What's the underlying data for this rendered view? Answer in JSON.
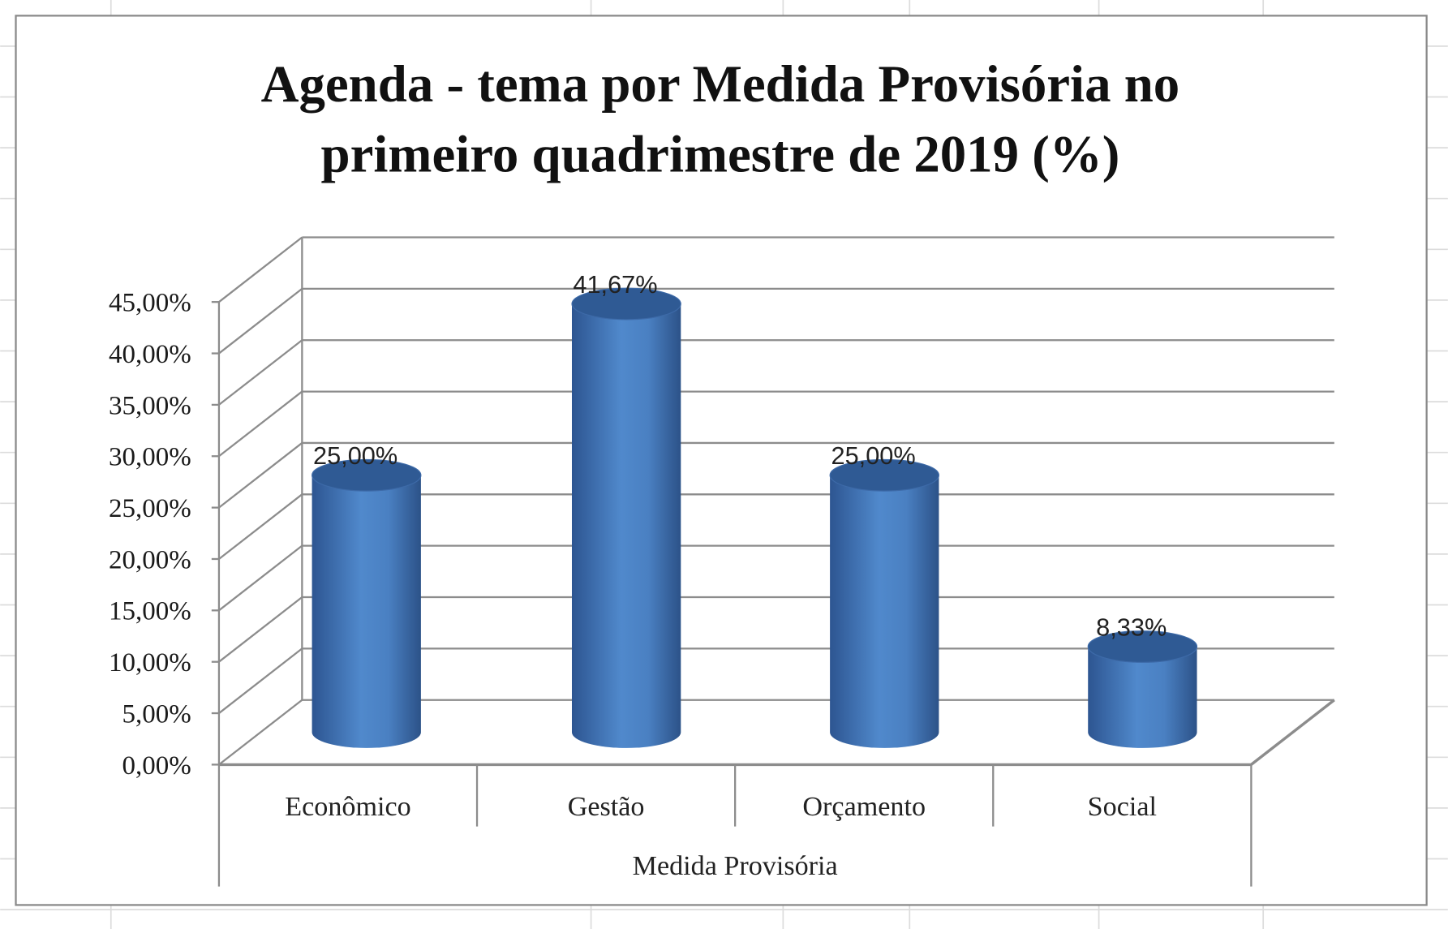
{
  "chart_data": {
    "type": "bar",
    "style": "3d-cylinder",
    "title": "Agenda - tema por Medida Provisória no primeiro quadrimestre de 2019 (%)",
    "title_lines": [
      "Agenda - tema por Medida Provisória no",
      "primeiro quadrimestre de 2019 (%)"
    ],
    "xlabel": "Medida Provisória",
    "ylabel": "",
    "categories": [
      "Econômico",
      "Gestão",
      "Orçamento",
      "Social"
    ],
    "values": [
      25.0,
      41.67,
      25.0,
      8.33
    ],
    "data_labels": [
      "25,00%",
      "41,67%",
      "25,00%",
      "8,33%"
    ],
    "yticks": [
      0,
      5,
      10,
      15,
      20,
      25,
      30,
      35,
      40,
      45
    ],
    "ytick_labels": [
      "0,00%",
      "5,00%",
      "10,00%",
      "15,00%",
      "20,00%",
      "25,00%",
      "30,00%",
      "35,00%",
      "40,00%",
      "45,00%"
    ],
    "ylim": [
      0,
      45
    ],
    "grid": true,
    "legend": "none",
    "colors": {
      "bar": "#4a7ebf",
      "bar_dark": "#2f5a94",
      "grid": "#8c8c8c",
      "text": "#1a1a1a"
    }
  }
}
